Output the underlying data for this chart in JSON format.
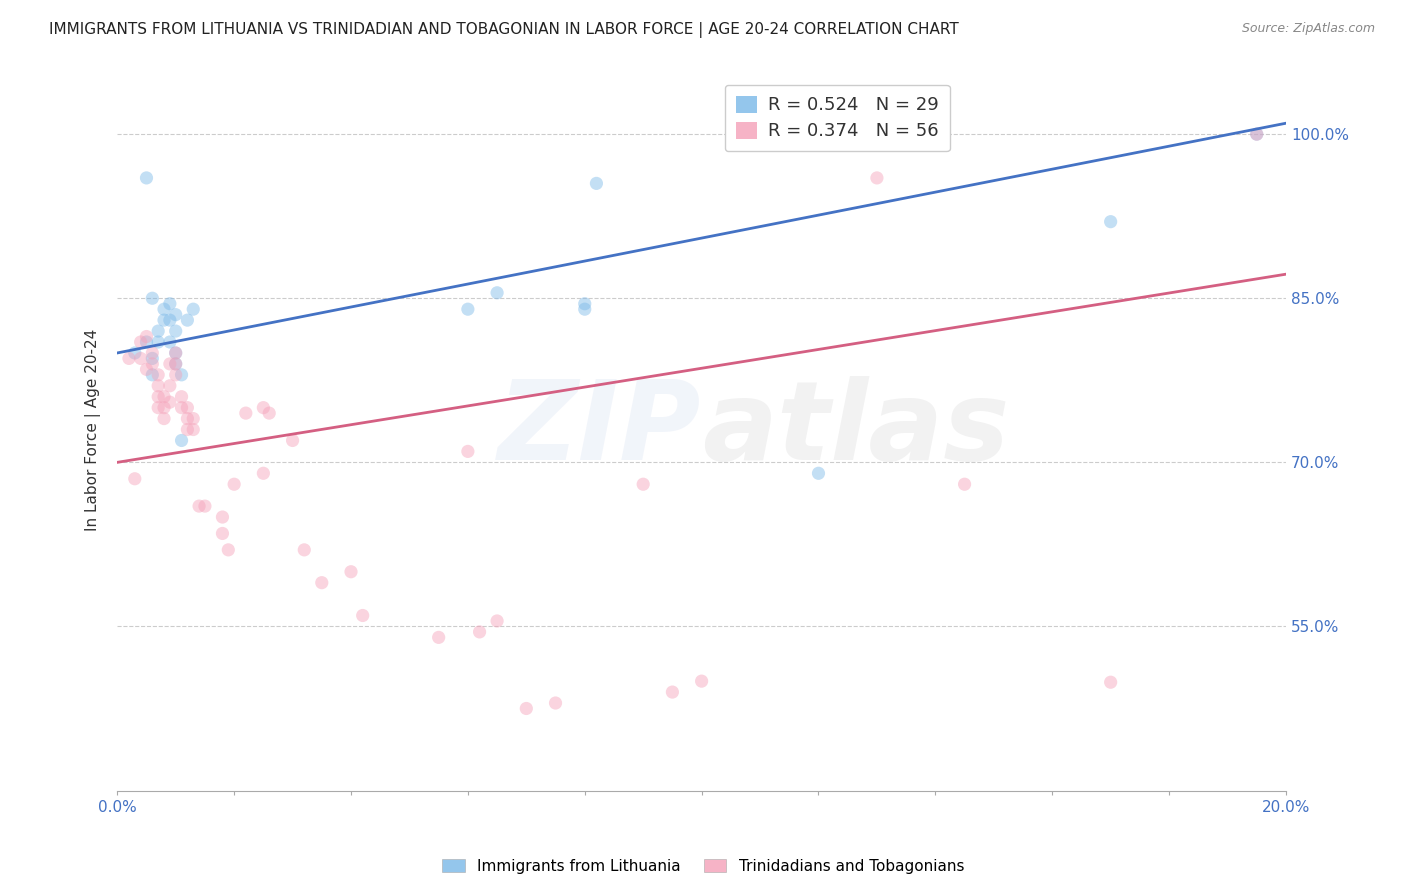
{
  "title": "IMMIGRANTS FROM LITHUANIA VS TRINIDADIAN AND TOBAGONIAN IN LABOR FORCE | AGE 20-24 CORRELATION CHART",
  "source": "Source: ZipAtlas.com",
  "ylabel": "In Labor Force | Age 20-24",
  "watermark_zip": "ZIP",
  "watermark_atlas": "atlas",
  "legend_blue_r": "R = 0.524",
  "legend_blue_n": "N = 29",
  "legend_pink_r": "R = 0.374",
  "legend_pink_n": "N = 56",
  "legend_label_blue": "Immigrants from Lithuania",
  "legend_label_pink": "Trinidadians and Tobagonians",
  "blue_color": "#7ab8e8",
  "pink_color": "#f4a0b8",
  "blue_line_color": "#4472C4",
  "pink_line_color": "#d45f82",
  "xlim": [
    0.0,
    0.2
  ],
  "ylim": [
    0.4,
    1.06
  ],
  "yticks": [
    0.55,
    0.7,
    0.85,
    1.0
  ],
  "ytick_labels": [
    "55.0%",
    "70.0%",
    "85.0%",
    "100.0%"
  ],
  "xticks": [
    0.0,
    0.02,
    0.04,
    0.06,
    0.08,
    0.1,
    0.12,
    0.14,
    0.16,
    0.18,
    0.2
  ],
  "xtick_labels_show": {
    "0.0": "0.0%",
    "0.20": "20.0%"
  },
  "blue_x": [
    0.003,
    0.005,
    0.005,
    0.006,
    0.006,
    0.006,
    0.007,
    0.007,
    0.008,
    0.008,
    0.009,
    0.009,
    0.009,
    0.01,
    0.01,
    0.01,
    0.01,
    0.011,
    0.011,
    0.012,
    0.013,
    0.06,
    0.065,
    0.08,
    0.08,
    0.082,
    0.12,
    0.17,
    0.195
  ],
  "blue_y": [
    0.8,
    0.81,
    0.96,
    0.78,
    0.795,
    0.85,
    0.81,
    0.82,
    0.84,
    0.83,
    0.845,
    0.83,
    0.81,
    0.8,
    0.79,
    0.82,
    0.835,
    0.72,
    0.78,
    0.83,
    0.84,
    0.84,
    0.855,
    0.845,
    0.84,
    0.955,
    0.69,
    0.92,
    1.0
  ],
  "pink_x": [
    0.002,
    0.003,
    0.004,
    0.004,
    0.005,
    0.005,
    0.006,
    0.006,
    0.007,
    0.007,
    0.007,
    0.007,
    0.008,
    0.008,
    0.008,
    0.009,
    0.009,
    0.009,
    0.01,
    0.01,
    0.01,
    0.011,
    0.011,
    0.012,
    0.012,
    0.012,
    0.013,
    0.013,
    0.014,
    0.015,
    0.018,
    0.018,
    0.019,
    0.02,
    0.022,
    0.025,
    0.025,
    0.026,
    0.03,
    0.032,
    0.035,
    0.04,
    0.042,
    0.055,
    0.06,
    0.062,
    0.065,
    0.07,
    0.075,
    0.09,
    0.095,
    0.1,
    0.13,
    0.145,
    0.17,
    0.195
  ],
  "pink_y": [
    0.795,
    0.685,
    0.795,
    0.81,
    0.785,
    0.815,
    0.8,
    0.79,
    0.78,
    0.77,
    0.76,
    0.75,
    0.76,
    0.75,
    0.74,
    0.79,
    0.77,
    0.755,
    0.8,
    0.79,
    0.78,
    0.76,
    0.75,
    0.75,
    0.74,
    0.73,
    0.74,
    0.73,
    0.66,
    0.66,
    0.65,
    0.635,
    0.62,
    0.68,
    0.745,
    0.75,
    0.69,
    0.745,
    0.72,
    0.62,
    0.59,
    0.6,
    0.56,
    0.54,
    0.71,
    0.545,
    0.555,
    0.475,
    0.48,
    0.68,
    0.49,
    0.5,
    0.96,
    0.68,
    0.499,
    1.0
  ],
  "blue_trendline_x": [
    0.0,
    0.2
  ],
  "blue_trendline_y": [
    0.8,
    1.01
  ],
  "pink_trendline_x": [
    0.0,
    0.2
  ],
  "pink_trendline_y": [
    0.7,
    0.872
  ],
  "title_fontsize": 11,
  "source_fontsize": 9,
  "axis_label_fontsize": 11,
  "tick_fontsize": 11,
  "legend_fontsize": 13,
  "marker_size": 90,
  "marker_alpha": 0.45,
  "watermark_alpha": 0.07,
  "watermark_fontsize": 80,
  "background_color": "#ffffff",
  "grid_color": "#cccccc",
  "tick_color": "#4472C4",
  "title_color": "#222222",
  "source_color": "#888888"
}
